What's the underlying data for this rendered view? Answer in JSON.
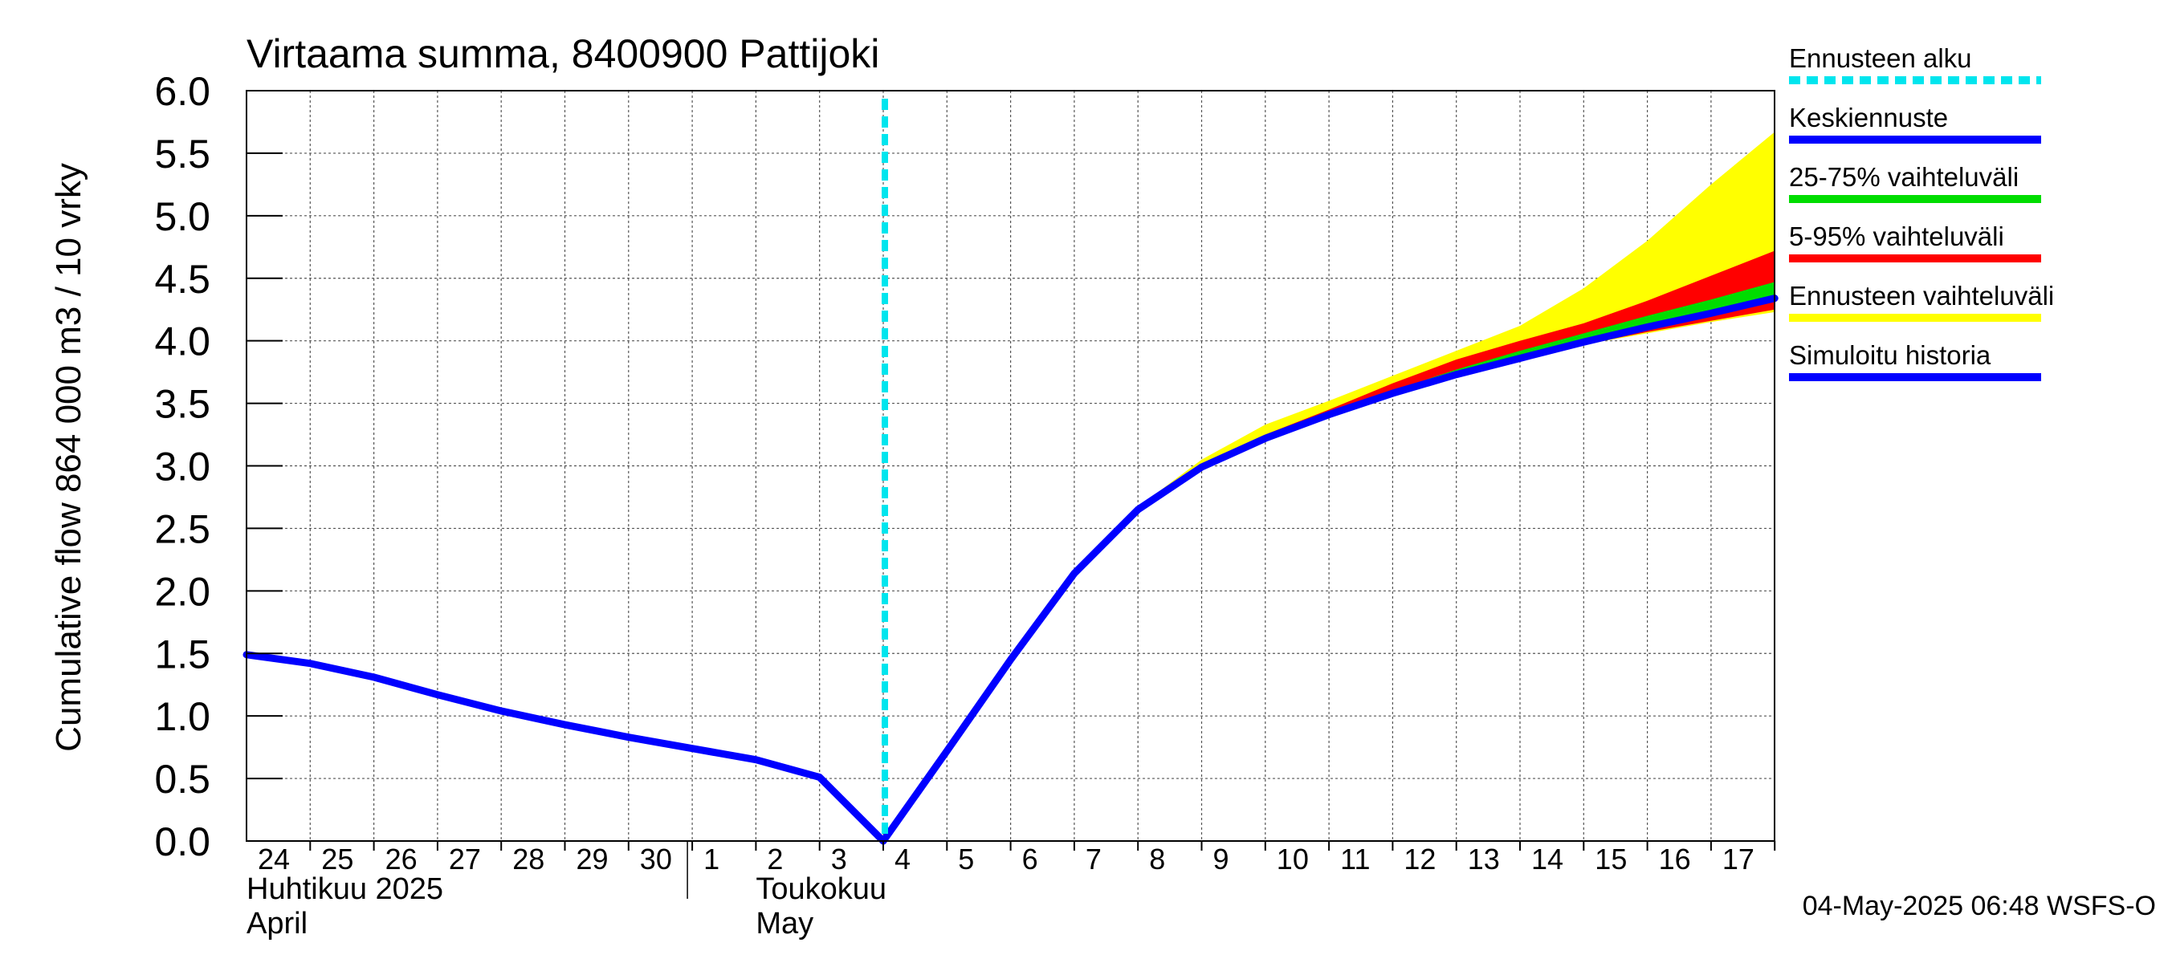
{
  "chart_data": {
    "type": "area",
    "title": "Virtaama summa, 8400900 Pattijoki",
    "ylabel": "Cumulative flow    864 000 m3 / 10 vrky",
    "ylim": [
      0.0,
      6.0
    ],
    "yticks": [
      "0.0",
      "0.5",
      "1.0",
      "1.5",
      "2.0",
      "2.5",
      "3.0",
      "3.5",
      "4.0",
      "4.5",
      "5.0",
      "5.5",
      "6.0"
    ],
    "xlim": [
      0,
      24
    ],
    "day_labels": [
      "24",
      "25",
      "26",
      "27",
      "28",
      "29",
      "30",
      "1",
      "2",
      "3",
      "4",
      "5",
      "6",
      "7",
      "8",
      "9",
      "10",
      "11",
      "12",
      "13",
      "14",
      "15",
      "16",
      "17"
    ],
    "month_labels": [
      {
        "line1": "Huhtikuu  2025",
        "line2": "April",
        "x": 0
      },
      {
        "line1": "Toukokuu",
        "line2": "May",
        "x": 8
      }
    ],
    "month_boundary_x": 7,
    "forecast_start_x": 10,
    "x_base_offset": 0,
    "series": [
      {
        "name": "Ennusteen vaihteluväli",
        "kind": "band",
        "color": "#ffff00",
        "x": [
          14,
          15,
          16,
          17,
          18,
          19,
          20,
          21,
          22,
          23,
          24
        ],
        "upper": [
          2.67,
          3.05,
          3.33,
          3.52,
          3.72,
          3.92,
          4.12,
          4.42,
          4.8,
          5.25,
          5.67
        ],
        "lower": [
          2.63,
          2.96,
          3.2,
          3.39,
          3.56,
          3.72,
          3.86,
          3.97,
          4.06,
          4.15,
          4.23
        ]
      },
      {
        "name": "5-95% vaihteluväli",
        "kind": "band",
        "color": "#ff0000",
        "x": [
          15,
          16,
          17,
          18,
          19,
          20,
          21,
          22,
          23,
          24
        ],
        "upper": [
          2.98,
          3.25,
          3.45,
          3.66,
          3.85,
          4.0,
          4.14,
          4.32,
          4.52,
          4.72
        ],
        "lower": [
          2.96,
          3.21,
          3.4,
          3.57,
          3.72,
          3.86,
          3.97,
          4.07,
          4.16,
          4.25
        ]
      },
      {
        "name": "25-75% vaihteluväli",
        "kind": "band",
        "color": "#00dd00",
        "x": [
          16,
          17,
          18,
          19,
          20,
          21,
          22,
          23,
          24
        ],
        "upper": [
          3.22,
          3.42,
          3.6,
          3.77,
          3.92,
          4.06,
          4.2,
          4.33,
          4.47
        ],
        "lower": [
          3.21,
          3.41,
          3.58,
          3.74,
          3.87,
          4.0,
          4.12,
          4.23,
          4.33
        ]
      },
      {
        "name": "Simuloitu historia",
        "kind": "line",
        "color": "#0000ff",
        "x": [
          0,
          1,
          2,
          3,
          4,
          5,
          6,
          7,
          8,
          9,
          10
        ],
        "values": [
          1.49,
          1.42,
          1.31,
          1.17,
          1.04,
          0.93,
          0.83,
          0.74,
          0.65,
          0.51,
          0.0
        ]
      },
      {
        "name": "Keskiennuste",
        "kind": "line",
        "color": "#0000ff",
        "x": [
          10,
          11,
          12,
          13,
          14,
          15,
          16,
          17,
          18,
          19,
          20,
          21,
          22,
          23,
          24
        ],
        "values": [
          0.0,
          0.72,
          1.45,
          2.14,
          2.65,
          2.99,
          3.22,
          3.41,
          3.58,
          3.73,
          3.86,
          3.99,
          4.11,
          4.22,
          4.34
        ]
      }
    ],
    "legend": {
      "placement": "right",
      "items": [
        {
          "label": "Ennusteen alku",
          "color": "#00e5ee",
          "style": "dashed"
        },
        {
          "label": "Keskiennuste",
          "color": "#0000ff",
          "style": "solid"
        },
        {
          "label": "25-75% vaihteluväli",
          "color": "#00dd00",
          "style": "solid"
        },
        {
          "label": "5-95% vaihteluväli",
          "color": "#ff0000",
          "style": "solid"
        },
        {
          "label": "Ennusteen vaihteluväli",
          "color": "#ffff00",
          "style": "solid"
        },
        {
          "label": "Simuloitu historia",
          "color": "#0000ff",
          "style": "solid"
        }
      ]
    },
    "footer": "04-May-2025 06:48 WSFS-O",
    "grid": true
  }
}
